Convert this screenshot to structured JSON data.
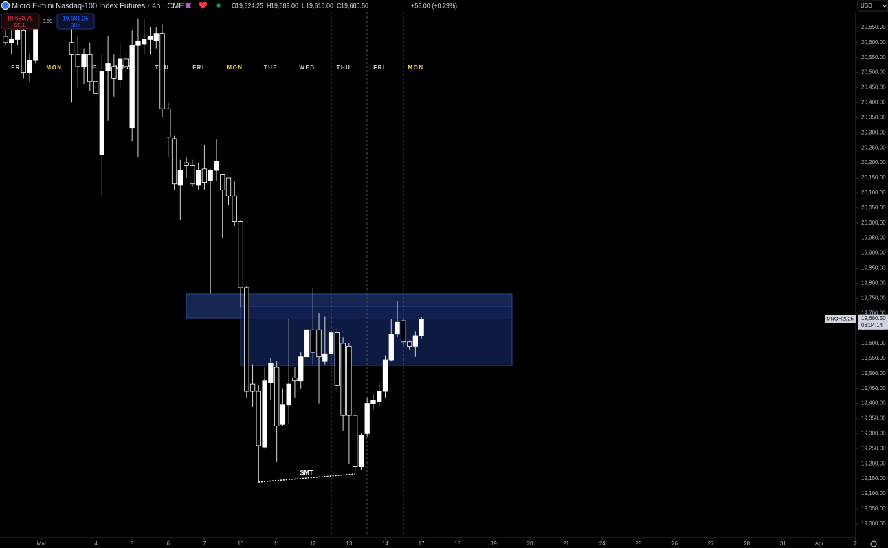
{
  "header": {
    "symbol": "Micro E-mini Nasdaq-100 Index Futures · 4h · CME",
    "ohlc": [
      {
        "key": "O",
        "value": "19,624.25"
      },
      {
        "key": "H",
        "value": "19,689.00"
      },
      {
        "key": "L",
        "value": "19,616.00"
      },
      {
        "key": "C",
        "value": "19,680.50"
      }
    ],
    "change": "+56.00 (+0.29%)",
    "currency": "USD"
  },
  "trade": {
    "sell_price": "19,680.75",
    "sell": "SELL",
    "spread": "0.50",
    "buy_price": "19,681.25",
    "buy": "BUY"
  },
  "chart_data": {
    "type": "candlestick",
    "x": [
      0,
      1,
      2,
      3,
      4,
      5,
      11,
      12,
      13,
      14,
      15,
      16,
      17,
      18,
      19,
      20,
      21,
      22,
      23,
      24,
      25,
      26,
      27,
      28,
      29,
      30,
      31,
      32,
      33,
      34,
      35,
      36,
      37,
      38,
      39,
      40,
      41,
      42,
      43,
      44,
      45,
      46,
      47,
      48,
      49,
      50,
      51,
      52,
      53,
      54,
      55,
      56,
      57,
      58,
      59,
      60,
      61,
      62,
      63,
      64,
      65,
      66,
      67,
      68,
      69
    ],
    "open": [
      20620,
      20600,
      20610,
      20640,
      20500,
      20540,
      20600,
      20560,
      20520,
      20560,
      20470,
      20228,
      20505,
      20520,
      20475,
      20545,
      20315,
      20590,
      20595,
      20610,
      20605,
      20630,
      20380,
      20280,
      20125,
      20200,
      20190,
      20125,
      20180,
      20140,
      20175,
      20160,
      20150,
      20090,
      20005,
      19785,
      19465,
      19440,
      19255,
      19470,
      19520,
      19330,
      19395,
      19485,
      19475,
      19555,
      19645,
      19645,
      19540,
      19565,
      19635,
      19600,
      19590,
      19360,
      19190,
      19300,
      19400,
      19405,
      19440,
      19545,
      19630,
      19675,
      19605,
      19590,
      19624.25
    ],
    "high": [
      20640,
      20640,
      20660,
      20660,
      20560,
      20660,
      20680,
      20620,
      20580,
      20600,
      20520,
      20560,
      20620,
      20560,
      20600,
      20570,
      20640,
      20680,
      20680,
      20650,
      20650,
      20660,
      20400,
      20290,
      20210,
      20220,
      20210,
      20200,
      20260,
      20180,
      20280,
      20160,
      20150,
      20140,
      20010,
      19790,
      19530,
      19460,
      19520,
      19550,
      19540,
      19450,
      19680,
      19520,
      19570,
      19680,
      19785,
      19700,
      19690,
      19690,
      19650,
      19620,
      19600,
      19370,
      19300,
      19420,
      19430,
      19470,
      19560,
      19680,
      19740,
      19680,
      19610,
      19640,
      19689
    ],
    "low": [
      20590,
      20560,
      20590,
      20480,
      20470,
      20530,
      20400,
      20450,
      20460,
      20440,
      20390,
      20090,
      20340,
      20420,
      20450,
      20500,
      20270,
      20220,
      20560,
      20560,
      20580,
      20350,
      20220,
      20110,
      20010,
      20150,
      20120,
      20110,
      20110,
      19765,
      20140,
      19950,
      20060,
      19990,
      19720,
      19420,
      19390,
      19140,
      19250,
      19410,
      19205,
      19325,
      19330,
      19420,
      19450,
      19530,
      19530,
      19400,
      19530,
      19500,
      19440,
      19310,
      19200,
      19170,
      19180,
      19290,
      19380,
      19390,
      19420,
      19540,
      19620,
      19590,
      19580,
      19555,
      19616
    ],
    "close": [
      20600,
      20610,
      20640,
      20500,
      20540,
      20650,
      20560,
      20520,
      20560,
      20470,
      20430,
      20505,
      20530,
      20480,
      20545,
      20520,
      20590,
      20605,
      20610,
      20620,
      20630,
      20380,
      20285,
      20130,
      20175,
      20190,
      20130,
      20175,
      20135,
      20175,
      20205,
      20110,
      20090,
      20005,
      19785,
      19440,
      19440,
      19260,
      19475,
      19535,
      19325,
      19395,
      19465,
      19475,
      19555,
      19645,
      19570,
      19555,
      19565,
      19635,
      19460,
      19360,
      19360,
      19190,
      19295,
      19400,
      19410,
      19440,
      19545,
      19630,
      19670,
      19605,
      19590,
      19625,
      19680.5
    ],
    "up_color": "#ffffff",
    "down_color": "#000000",
    "wick_color": "#d1d4dc",
    "xlim": [
      -0.912,
      141.05
    ],
    "xticks": [
      {
        "value": 6,
        "label": "Mar"
      },
      {
        "value": 15,
        "label": "4"
      },
      {
        "value": 21,
        "label": "5"
      },
      {
        "value": 27,
        "label": "6"
      },
      {
        "value": 33,
        "label": "7"
      },
      {
        "value": 39,
        "label": "10"
      },
      {
        "value": 45,
        "label": "11"
      },
      {
        "value": 51,
        "label": "12"
      },
      {
        "value": 57,
        "label": "13"
      },
      {
        "value": 63,
        "label": "14"
      },
      {
        "value": 69,
        "label": "17"
      },
      {
        "value": 75,
        "label": "18"
      },
      {
        "value": 81,
        "label": "19"
      },
      {
        "value": 87,
        "label": "20"
      },
      {
        "value": 93,
        "label": "21"
      },
      {
        "value": 99,
        "label": "24"
      },
      {
        "value": 105,
        "label": "25"
      },
      {
        "value": 111,
        "label": "26"
      },
      {
        "value": 117,
        "label": "27"
      },
      {
        "value": 123,
        "label": "28"
      },
      {
        "value": 129,
        "label": "31"
      },
      {
        "value": 135,
        "label": "Apr"
      },
      {
        "value": 141,
        "label": "2"
      }
    ],
    "ylim": [
      18954,
      20700
    ],
    "yticks": [
      {
        "value": 19000,
        "label": "19,000.00"
      },
      {
        "value": 19050,
        "label": "19,050.00"
      },
      {
        "value": 19100,
        "label": "19,100.00"
      },
      {
        "value": 19150,
        "label": "19,150.00"
      },
      {
        "value": 19200,
        "label": "19,200.00"
      },
      {
        "value": 19250,
        "label": "19,250.00"
      },
      {
        "value": 19300,
        "label": "19,300.00"
      },
      {
        "value": 19350,
        "label": "19,350.00"
      },
      {
        "value": 19400,
        "label": "19,400.00"
      },
      {
        "value": 19450,
        "label": "19,450.00"
      },
      {
        "value": 19500,
        "label": "19,500.00"
      },
      {
        "value": 19550,
        "label": "19,550.00"
      },
      {
        "value": 19600,
        "label": "19,600.00"
      },
      {
        "value": 19650,
        "label": "19,650.00"
      },
      {
        "value": 19700,
        "label": "19,700.00"
      },
      {
        "value": 19750,
        "label": "19,750.00"
      },
      {
        "value": 19800,
        "label": "19,800.00"
      },
      {
        "value": 19850,
        "label": "19,850.00"
      },
      {
        "value": 19900,
        "label": "19,900.00"
      },
      {
        "value": 19950,
        "label": "19,950.00"
      },
      {
        "value": 20000,
        "label": "20,000.00"
      },
      {
        "value": 20050,
        "label": "20,050.00"
      },
      {
        "value": 20100,
        "label": "20,100.00"
      },
      {
        "value": 20150,
        "label": "20,150.00"
      },
      {
        "value": 20200,
        "label": "20,200.00"
      },
      {
        "value": 20250,
        "label": "20,250.00"
      },
      {
        "value": 20300,
        "label": "20,300.00"
      },
      {
        "value": 20350,
        "label": "20,350.00"
      },
      {
        "value": 20400,
        "label": "20,400.00"
      },
      {
        "value": 20450,
        "label": "20,450.00"
      },
      {
        "value": 20500,
        "label": "20,500.00"
      },
      {
        "value": 20550,
        "label": "20,550.00"
      },
      {
        "value": 20600,
        "label": "20,600.00"
      },
      {
        "value": 20650,
        "label": "20,650.00"
      }
    ],
    "session_labels": [
      {
        "label": "FRI",
        "color": "#d1d4dc"
      },
      {
        "label": "MON",
        "color": "#f5d742"
      },
      {
        "label": "TUE",
        "color": "#d1d4dc"
      },
      {
        "label": "WED",
        "color": "#d1d4dc"
      },
      {
        "label": "THU",
        "color": "#d1d4dc"
      },
      {
        "label": "FRI",
        "color": "#d1d4dc"
      },
      {
        "label": "MON",
        "color": "#f5d742"
      },
      {
        "label": "TUE",
        "color": "#d1d4dc"
      },
      {
        "label": "WED",
        "color": "#d1d4dc"
      },
      {
        "label": "THU",
        "color": "#d1d4dc"
      },
      {
        "label": "FRI",
        "color": "#d1d4dc"
      },
      {
        "label": "MON",
        "color": "#f5d742"
      }
    ],
    "last_price": {
      "value": 19680.5,
      "label": "19,680.50",
      "symbol": "MNQH2025",
      "countdown": "03:04:14"
    },
    "annotation": "SMT"
  }
}
